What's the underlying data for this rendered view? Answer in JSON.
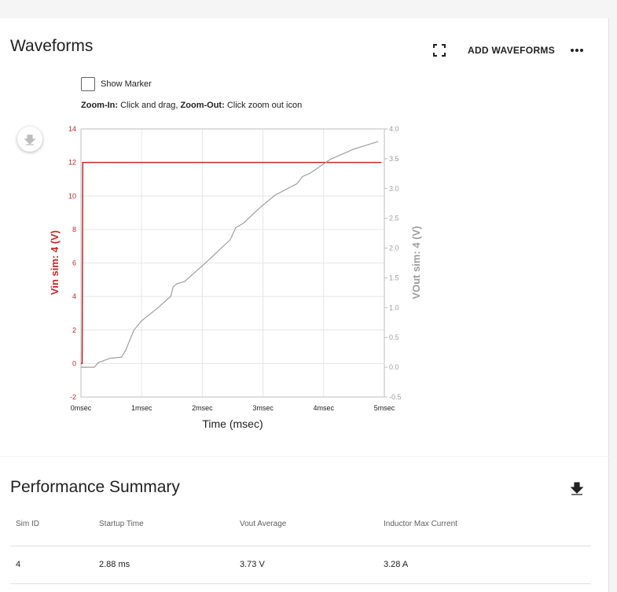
{
  "waveforms": {
    "title": "Waveforms",
    "add_button": "ADD WAVEFORMS",
    "marker_label": "Show Marker",
    "zoom_in_label": "Zoom-In:",
    "zoom_in_text": "Click and drag,",
    "zoom_out_label": "Zoom-Out:",
    "zoom_out_text": "Click zoom out icon"
  },
  "chart_data": {
    "type": "line",
    "x_label": "Time (msec)",
    "y_label": "Vin sim: 4 (V)",
    "y2_label": "VOut sim: 4 (V)",
    "xlim": [
      0,
      5
    ],
    "xticks": [
      {
        "value": 0,
        "label": "0msec"
      },
      {
        "value": 1,
        "label": "1msec"
      },
      {
        "value": 2,
        "label": "2msec"
      },
      {
        "value": 3,
        "label": "3msec"
      },
      {
        "value": 4,
        "label": "4msec"
      },
      {
        "value": 5,
        "label": "5msec"
      }
    ],
    "ylim": [
      -2,
      14
    ],
    "yticks": [
      -2,
      0,
      2,
      4,
      6,
      8,
      10,
      12,
      14
    ],
    "y2lim": [
      -0.5,
      4.0
    ],
    "y2ticks": [
      -0.5,
      {
        "value": 0,
        "label": "0.0"
      },
      0.5,
      {
        "value": 1,
        "label": "1.0"
      },
      1.5,
      {
        "value": 2,
        "label": "2.0"
      },
      2.5,
      {
        "value": 3,
        "label": "3.0"
      },
      3.5,
      {
        "value": 4,
        "label": "4.0"
      }
    ],
    "grid": true,
    "series": [
      {
        "name": "Vin sim: 4",
        "color": "#c62828",
        "x": [
          0,
          0.02,
          0.03,
          4.95
        ],
        "values": [
          0,
          0,
          12,
          12
        ]
      },
      {
        "name": "VOut sim: 4",
        "color": "#9e9e9e",
        "axis": "y2",
        "x": [
          0,
          0.22,
          0.29,
          0.48,
          0.67,
          0.74,
          0.87,
          1.0,
          1.26,
          1.48,
          1.52,
          1.58,
          1.71,
          2.03,
          2.46,
          2.55,
          2.68,
          2.94,
          3.2,
          3.56,
          3.65,
          3.78,
          4.11,
          4.49,
          4.9
        ],
        "values": [
          0,
          0,
          0.08,
          0.15,
          0.17,
          0.29,
          0.62,
          0.78,
          0.99,
          1.19,
          1.35,
          1.4,
          1.44,
          1.73,
          2.14,
          2.34,
          2.42,
          2.67,
          2.89,
          3.08,
          3.2,
          3.26,
          3.49,
          3.66,
          3.79
        ]
      }
    ]
  },
  "performance": {
    "title": "Performance Summary",
    "table": {
      "columns": [
        "Sim ID",
        "Startup Time",
        "Vout Average",
        "Inductor Max Current"
      ],
      "rows": [
        [
          "4",
          "2.88 ms",
          "3.73 V",
          "3.28 A"
        ]
      ]
    }
  }
}
